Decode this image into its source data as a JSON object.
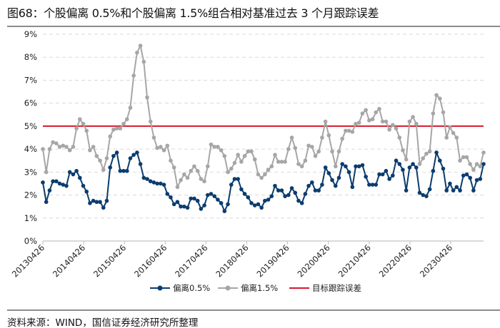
{
  "title": "图68：个股偏离 0.5%和个股偏离 1.5%组合相对基准过去 3 个月跟踪误差",
  "source": "资料来源：WIND，国信证券经济研究所整理",
  "chart_data": {
    "type": "line",
    "title": "图68：个股偏离 0.5%和个股偏离 1.5%组合相对基准过去 3 个月跟踪误差",
    "xlabel": "",
    "ylabel": "",
    "ylim": [
      0,
      9
    ],
    "yticks": [
      "0%",
      "1%",
      "2%",
      "3%",
      "4%",
      "5%",
      "6%",
      "7%",
      "8%",
      "9%"
    ],
    "xticks": [
      "20130426",
      "20140426",
      "20150426",
      "20160426",
      "20170426",
      "20180426",
      "20190426",
      "20200426",
      "20210426",
      "20220426",
      "20230426"
    ],
    "x_frequency": "monthly, starting 2013-04",
    "grid": true,
    "legend_position": "bottom",
    "colors": {
      "s1": "#0b3c6e",
      "s2": "#a6a6a6",
      "target": "#d7182a",
      "grid": "#d9d9d9"
    },
    "series": [
      {
        "name": "偏离0.5%",
        "values": [
          2.55,
          1.7,
          2.2,
          2.6,
          2.6,
          2.5,
          2.45,
          2.4,
          3.0,
          2.9,
          3.05,
          2.75,
          2.4,
          2.15,
          1.65,
          1.75,
          1.7,
          1.7,
          1.45,
          1.75,
          3.2,
          3.7,
          3.85,
          3.05,
          3.05,
          3.05,
          3.6,
          3.75,
          3.85,
          3.35,
          2.75,
          2.7,
          2.6,
          2.55,
          2.5,
          2.5,
          2.45,
          2.05,
          1.9,
          1.6,
          1.7,
          1.5,
          1.5,
          1.45,
          1.85,
          1.85,
          1.75,
          1.4,
          1.55,
          2.0,
          2.05,
          1.95,
          1.8,
          1.65,
          1.3,
          1.6,
          2.45,
          2.7,
          2.7,
          2.25,
          2.05,
          1.9,
          1.65,
          1.55,
          1.6,
          1.45,
          1.75,
          1.8,
          1.95,
          2.4,
          2.2,
          2.2,
          1.95,
          2.0,
          2.3,
          2.1,
          1.75,
          1.65,
          2.05,
          2.4,
          2.55,
          2.2,
          2.2,
          2.45,
          3.2,
          2.95,
          2.65,
          2.4,
          2.75,
          3.35,
          3.25,
          3.0,
          2.35,
          3.25,
          3.25,
          3.3,
          2.8,
          2.45,
          2.45,
          2.45,
          2.9,
          2.9,
          3.05,
          2.7,
          2.85,
          3.5,
          3.35,
          3.1,
          2.2,
          3.2,
          3.35,
          3.2,
          2.1,
          2.0,
          1.95,
          2.25,
          3.05,
          3.85,
          3.5,
          3.15,
          2.2,
          2.5,
          2.2,
          2.35,
          2.2,
          2.85,
          2.9,
          2.75,
          2.2,
          2.65,
          2.7,
          3.35
        ]
      },
      {
        "name": "偏离1.5%",
        "values": [
          4.0,
          3.0,
          4.0,
          4.3,
          4.25,
          4.1,
          4.15,
          4.1,
          3.95,
          4.1,
          4.9,
          5.3,
          5.1,
          4.8,
          3.95,
          4.1,
          3.7,
          3.5,
          3.1,
          3.6,
          4.55,
          4.85,
          4.9,
          4.9,
          5.1,
          5.3,
          5.8,
          7.2,
          8.2,
          8.5,
          7.8,
          6.25,
          5.2,
          4.5,
          4.05,
          4.1,
          3.95,
          4.15,
          3.5,
          3.2,
          2.35,
          2.65,
          2.9,
          2.75,
          3.05,
          3.25,
          3.05,
          2.7,
          2.6,
          3.25,
          4.2,
          4.1,
          4.1,
          3.95,
          3.7,
          3.0,
          3.15,
          3.4,
          3.75,
          3.45,
          3.7,
          3.9,
          3.9,
          3.55,
          2.9,
          2.75,
          2.9,
          3.1,
          3.25,
          3.75,
          3.45,
          3.45,
          3.45,
          4.0,
          4.5,
          4.05,
          3.35,
          3.25,
          3.5,
          4.15,
          4.1,
          3.7,
          3.9,
          4.5,
          5.2,
          4.6,
          3.9,
          3.25,
          3.9,
          4.45,
          4.8,
          4.8,
          4.75,
          5.1,
          5.15,
          5.55,
          5.7,
          5.25,
          5.3,
          5.6,
          5.75,
          5.2,
          5.2,
          4.85,
          5.05,
          4.9,
          4.5,
          3.95,
          3.55,
          5.2,
          5.4,
          5.1,
          3.35,
          3.6,
          3.8,
          3.9,
          5.55,
          6.35,
          6.2,
          5.6,
          4.5,
          4.95,
          4.7,
          4.5,
          3.5,
          3.65,
          3.65,
          3.35,
          3.1,
          3.35,
          3.25,
          3.85
        ]
      },
      {
        "name": "目标跟踪误差",
        "values": [
          5,
          5
        ]
      }
    ]
  }
}
